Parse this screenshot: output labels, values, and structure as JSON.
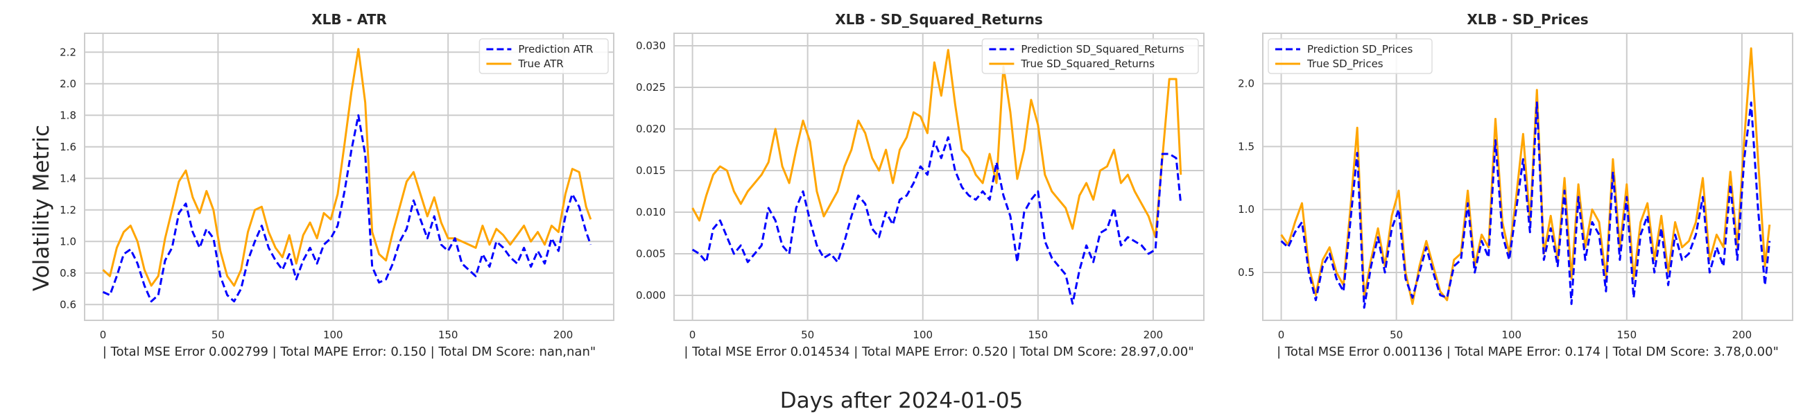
{
  "figure": {
    "ylabel": "Volatility Metric",
    "xlabel": "Days after 2024-01-05"
  },
  "colors": {
    "prediction": "#0000ff",
    "true": "#ffa500",
    "grid": "#cccccc",
    "spine": "#cccccc",
    "text": "#262626"
  },
  "chart_data": [
    {
      "type": "line",
      "title": "XLB - ATR",
      "caption": "| Total MSE Error 0.002799 | Total MAPE Error: 0.150 | Total DM Score: nan,nan\"",
      "xlim": [
        -8,
        222
      ],
      "ylim": [
        0.5,
        2.32
      ],
      "xticks": [
        0,
        50,
        100,
        150,
        200
      ],
      "yticks": [
        0.6,
        0.8,
        1.0,
        1.2,
        1.4,
        1.6,
        1.8,
        2.0,
        2.2
      ],
      "ytick_decimals": 1,
      "legend": "top-right",
      "series": [
        {
          "name": "Prediction ATR",
          "style": "dashed",
          "color": "#0000ff",
          "x": [
            0,
            3,
            6,
            9,
            12,
            15,
            18,
            21,
            24,
            27,
            30,
            33,
            36,
            39,
            42,
            45,
            48,
            51,
            54,
            57,
            60,
            63,
            66,
            69,
            72,
            75,
            78,
            81,
            84,
            87,
            90,
            93,
            96,
            99,
            102,
            105,
            108,
            111,
            114,
            117,
            120,
            123,
            126,
            129,
            132,
            135,
            138,
            141,
            144,
            147,
            150,
            153,
            156,
            159,
            162,
            165,
            168,
            171,
            174,
            177,
            180,
            183,
            186,
            189,
            192,
            195,
            198,
            201,
            204,
            207,
            210,
            212
          ],
          "y": [
            0.68,
            0.66,
            0.78,
            0.92,
            0.95,
            0.86,
            0.72,
            0.62,
            0.66,
            0.88,
            0.96,
            1.18,
            1.24,
            1.06,
            0.96,
            1.08,
            1.02,
            0.78,
            0.66,
            0.62,
            0.7,
            0.88,
            1.0,
            1.1,
            0.96,
            0.88,
            0.82,
            0.92,
            0.76,
            0.88,
            0.96,
            0.86,
            0.98,
            1.02,
            1.1,
            1.32,
            1.58,
            1.8,
            1.55,
            0.84,
            0.74,
            0.76,
            0.86,
            1.0,
            1.08,
            1.26,
            1.14,
            1.02,
            1.16,
            0.98,
            0.94,
            1.02,
            0.86,
            0.82,
            0.78,
            0.92,
            0.84,
            1.0,
            0.96,
            0.9,
            0.86,
            0.96,
            0.84,
            0.94,
            0.86,
            1.02,
            0.94,
            1.16,
            1.3,
            1.22,
            1.06,
            0.98
          ]
        },
        {
          "name": "True ATR",
          "style": "solid",
          "color": "#ffa500",
          "x": [
            0,
            3,
            6,
            9,
            12,
            15,
            18,
            21,
            24,
            27,
            30,
            33,
            36,
            39,
            42,
            45,
            48,
            51,
            54,
            57,
            60,
            63,
            66,
            69,
            72,
            75,
            78,
            81,
            84,
            87,
            90,
            93,
            96,
            99,
            102,
            105,
            108,
            111,
            114,
            117,
            120,
            123,
            126,
            129,
            132,
            135,
            138,
            141,
            144,
            147,
            150,
            153,
            156,
            159,
            162,
            165,
            168,
            171,
            174,
            177,
            180,
            183,
            186,
            189,
            192,
            195,
            198,
            201,
            204,
            207,
            210,
            212
          ],
          "y": [
            0.82,
            0.78,
            0.96,
            1.06,
            1.1,
            1.0,
            0.82,
            0.72,
            0.78,
            1.02,
            1.2,
            1.38,
            1.45,
            1.28,
            1.18,
            1.32,
            1.2,
            0.94,
            0.78,
            0.72,
            0.82,
            1.06,
            1.2,
            1.22,
            1.06,
            0.96,
            0.9,
            1.04,
            0.86,
            1.04,
            1.12,
            1.02,
            1.18,
            1.14,
            1.3,
            1.62,
            1.95,
            2.22,
            1.88,
            1.06,
            0.92,
            0.88,
            1.06,
            1.22,
            1.38,
            1.44,
            1.3,
            1.16,
            1.28,
            1.12,
            1.02,
            1.02,
            1.0,
            0.98,
            0.96,
            1.1,
            0.98,
            1.08,
            1.04,
            0.98,
            1.04,
            1.1,
            1.0,
            1.06,
            0.98,
            1.1,
            1.06,
            1.3,
            1.46,
            1.44,
            1.22,
            1.14
          ]
        }
      ]
    },
    {
      "type": "line",
      "title": "XLB - SD_Squared_Returns",
      "caption": "| Total MSE Error 0.014534 | Total MAPE Error: 0.520 | Total DM Score: 28.97,0.00\"",
      "xlim": [
        -8,
        222
      ],
      "ylim": [
        -0.003,
        0.0315
      ],
      "xticks": [
        0,
        50,
        100,
        150,
        200
      ],
      "yticks": [
        0.0,
        0.005,
        0.01,
        0.015,
        0.02,
        0.025,
        0.03
      ],
      "ytick_decimals": 3,
      "legend": "top-right",
      "series": [
        {
          "name": "Prediction SD_Squared_Returns",
          "style": "dashed",
          "color": "#0000ff",
          "x": [
            0,
            3,
            6,
            9,
            12,
            15,
            18,
            21,
            24,
            27,
            30,
            33,
            36,
            39,
            42,
            45,
            48,
            51,
            54,
            57,
            60,
            63,
            66,
            69,
            72,
            75,
            78,
            81,
            84,
            87,
            90,
            93,
            96,
            99,
            102,
            105,
            108,
            111,
            114,
            117,
            120,
            123,
            126,
            129,
            132,
            135,
            138,
            141,
            144,
            147,
            150,
            153,
            156,
            159,
            162,
            165,
            168,
            171,
            174,
            177,
            180,
            183,
            186,
            189,
            192,
            195,
            198,
            201,
            204,
            207,
            210,
            212
          ],
          "y": [
            0.0055,
            0.005,
            0.004,
            0.008,
            0.009,
            0.007,
            0.005,
            0.006,
            0.004,
            0.005,
            0.006,
            0.0105,
            0.009,
            0.006,
            0.005,
            0.0105,
            0.0125,
            0.009,
            0.006,
            0.0045,
            0.005,
            0.004,
            0.0065,
            0.0095,
            0.012,
            0.011,
            0.008,
            0.007,
            0.01,
            0.0085,
            0.0115,
            0.012,
            0.0135,
            0.0155,
            0.0145,
            0.0185,
            0.0165,
            0.019,
            0.015,
            0.013,
            0.012,
            0.0115,
            0.0125,
            0.0115,
            0.016,
            0.012,
            0.0095,
            0.004,
            0.01,
            0.0115,
            0.0125,
            0.0065,
            0.0045,
            0.0035,
            0.0025,
            -0.001,
            0.003,
            0.006,
            0.004,
            0.0075,
            0.008,
            0.0105,
            0.006,
            0.007,
            0.0065,
            0.006,
            0.005,
            0.0055,
            0.017,
            0.017,
            0.0165,
            0.011
          ]
        },
        {
          "name": "True SD_Squared_Returns",
          "style": "solid",
          "color": "#ffa500",
          "x": [
            0,
            3,
            6,
            9,
            12,
            15,
            18,
            21,
            24,
            27,
            30,
            33,
            36,
            39,
            42,
            45,
            48,
            51,
            54,
            57,
            60,
            63,
            66,
            69,
            72,
            75,
            78,
            81,
            84,
            87,
            90,
            93,
            96,
            99,
            102,
            105,
            108,
            111,
            114,
            117,
            120,
            123,
            126,
            129,
            132,
            135,
            138,
            141,
            144,
            147,
            150,
            153,
            156,
            159,
            162,
            165,
            168,
            171,
            174,
            177,
            180,
            183,
            186,
            189,
            192,
            195,
            198,
            201,
            204,
            207,
            210,
            212
          ],
          "y": [
            0.0105,
            0.009,
            0.012,
            0.0145,
            0.0155,
            0.015,
            0.0125,
            0.011,
            0.0125,
            0.0135,
            0.0145,
            0.016,
            0.02,
            0.0155,
            0.0135,
            0.0175,
            0.021,
            0.0185,
            0.0125,
            0.0095,
            0.011,
            0.0125,
            0.0155,
            0.0175,
            0.021,
            0.0195,
            0.0165,
            0.015,
            0.0175,
            0.0135,
            0.0175,
            0.019,
            0.022,
            0.0215,
            0.0195,
            0.028,
            0.024,
            0.0295,
            0.023,
            0.0175,
            0.0165,
            0.0145,
            0.0135,
            0.017,
            0.0135,
            0.0275,
            0.022,
            0.014,
            0.0175,
            0.0235,
            0.0205,
            0.0145,
            0.0125,
            0.0115,
            0.0105,
            0.008,
            0.012,
            0.0135,
            0.0115,
            0.015,
            0.0155,
            0.0175,
            0.0135,
            0.0145,
            0.0125,
            0.011,
            0.0095,
            0.007,
            0.0165,
            0.026,
            0.026,
            0.0145
          ]
        }
      ]
    },
    {
      "type": "line",
      "title": "XLB - SD_Prices",
      "caption": "| Total MSE Error 0.001136 | Total MAPE Error: 0.174 | Total DM Score: 3.78,0.00\"",
      "xlim": [
        -8,
        222
      ],
      "ylim": [
        0.12,
        2.4
      ],
      "xticks": [
        0,
        50,
        100,
        150,
        200
      ],
      "yticks": [
        0.5,
        1.0,
        1.5,
        2.0
      ],
      "ytick_decimals": 1,
      "legend": "top-left",
      "series": [
        {
          "name": "Prediction SD_Prices",
          "style": "dashed",
          "color": "#0000ff",
          "x": [
            0,
            3,
            6,
            9,
            12,
            15,
            18,
            21,
            24,
            27,
            30,
            33,
            36,
            39,
            42,
            45,
            48,
            51,
            54,
            57,
            60,
            63,
            66,
            69,
            72,
            75,
            78,
            81,
            84,
            87,
            90,
            93,
            96,
            99,
            102,
            105,
            108,
            111,
            114,
            117,
            120,
            123,
            126,
            129,
            132,
            135,
            138,
            141,
            144,
            147,
            150,
            153,
            156,
            159,
            162,
            165,
            168,
            171,
            174,
            177,
            180,
            183,
            186,
            189,
            192,
            195,
            198,
            201,
            204,
            207,
            210,
            212
          ],
          "y": [
            0.75,
            0.7,
            0.82,
            0.9,
            0.5,
            0.28,
            0.55,
            0.65,
            0.45,
            0.35,
            0.9,
            1.45,
            0.22,
            0.55,
            0.78,
            0.5,
            0.85,
            1.0,
            0.45,
            0.3,
            0.5,
            0.7,
            0.5,
            0.32,
            0.3,
            0.55,
            0.6,
            1.05,
            0.5,
            0.75,
            0.62,
            1.55,
            0.8,
            0.6,
            1.0,
            1.4,
            0.82,
            1.85,
            0.6,
            0.85,
            0.55,
            1.15,
            0.25,
            1.1,
            0.6,
            0.9,
            0.8,
            0.35,
            1.3,
            0.6,
            1.1,
            0.3,
            0.8,
            0.95,
            0.5,
            0.85,
            0.4,
            0.8,
            0.6,
            0.65,
            0.8,
            1.1,
            0.5,
            0.7,
            0.55,
            1.2,
            0.6,
            1.4,
            1.85,
            1.0,
            0.4,
            0.75
          ]
        },
        {
          "name": "True SD_Prices",
          "style": "solid",
          "color": "#ffa500",
          "x": [
            0,
            3,
            6,
            9,
            12,
            15,
            18,
            21,
            24,
            27,
            30,
            33,
            36,
            39,
            42,
            45,
            48,
            51,
            54,
            57,
            60,
            63,
            66,
            69,
            72,
            75,
            78,
            81,
            84,
            87,
            90,
            93,
            96,
            99,
            102,
            105,
            108,
            111,
            114,
            117,
            120,
            123,
            126,
            129,
            132,
            135,
            138,
            141,
            144,
            147,
            150,
            153,
            156,
            159,
            162,
            165,
            168,
            171,
            174,
            177,
            180,
            183,
            186,
            189,
            192,
            195,
            198,
            201,
            204,
            207,
            210,
            212
          ],
          "y": [
            0.8,
            0.72,
            0.9,
            1.05,
            0.55,
            0.32,
            0.6,
            0.7,
            0.5,
            0.4,
            1.0,
            1.65,
            0.3,
            0.6,
            0.85,
            0.55,
            0.95,
            1.15,
            0.5,
            0.25,
            0.55,
            0.75,
            0.55,
            0.35,
            0.28,
            0.6,
            0.65,
            1.15,
            0.55,
            0.8,
            0.7,
            1.72,
            0.9,
            0.65,
            1.1,
            1.6,
            0.9,
            1.95,
            0.65,
            0.95,
            0.6,
            1.25,
            0.45,
            1.2,
            0.7,
            1.0,
            0.9,
            0.45,
            1.4,
            0.7,
            1.2,
            0.45,
            0.9,
            1.05,
            0.6,
            0.95,
            0.5,
            0.9,
            0.7,
            0.75,
            0.9,
            1.25,
            0.6,
            0.8,
            0.7,
            1.3,
            0.7,
            1.55,
            2.28,
            1.4,
            0.55,
            0.88
          ]
        }
      ]
    }
  ]
}
